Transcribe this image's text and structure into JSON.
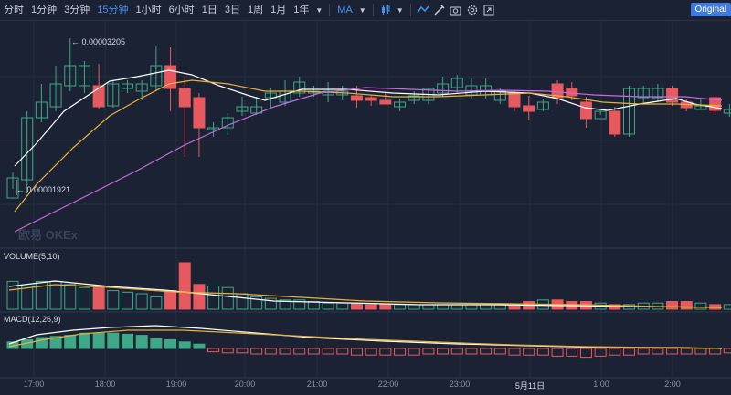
{
  "toolbar": {
    "periods": [
      "分时",
      "1分钟",
      "3分钟",
      "15分钟",
      "1小时",
      "6小时",
      "1日",
      "3日",
      "1周",
      "1月",
      "1年"
    ],
    "active_period": "15分钟",
    "indicator": "MA",
    "origin_label": "Original"
  },
  "chart": {
    "high_label": "← 0.00003205",
    "low_label": "← 0.00001921",
    "volume_title": "VOLUME(5,10)",
    "macd_title": "MACD(12,26,9)",
    "watermark": "欧易 OKEx",
    "time_axis": [
      "17:00",
      "18:00",
      "19:00",
      "20:00",
      "21:00",
      "22:00",
      "23:00",
      "5月11日",
      "1:00",
      "2:00"
    ],
    "highlight_axis_label": "5月11日"
  },
  "colors": {
    "up": "#3ea889",
    "down": "#e65a5f",
    "ma1": "#ffffff",
    "ma2": "#e8b23a",
    "ma3": "#c86be0",
    "accent": "#4a8ff0",
    "background": "#1b2233"
  },
  "icons": [
    "dropdown-caret",
    "candle-type-icon",
    "indicator-line-icon",
    "draw-icon",
    "settings-icon",
    "fullscreen-icon",
    "camera-icon"
  ]
}
